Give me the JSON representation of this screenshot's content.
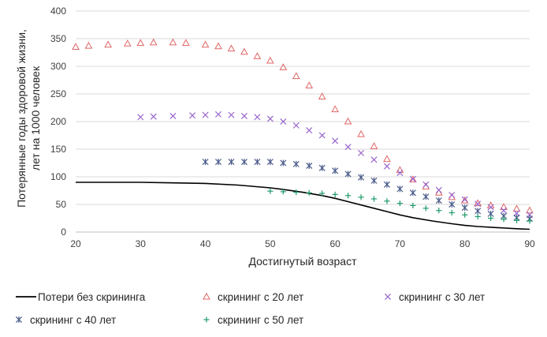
{
  "chart_data": {
    "type": "line",
    "xlabel": "Достигнутый возраст",
    "ylabel_lines": [
      "Потерянные годы здоровой жизни,",
      "лет на 1000 человек"
    ],
    "xlim": [
      20,
      90
    ],
    "ylim": [
      0,
      400
    ],
    "xticks": [
      "20",
      "30",
      "40",
      "50",
      "60",
      "70",
      "80",
      "90"
    ],
    "yticks": [
      "0",
      "50",
      "100",
      "150",
      "200",
      "250",
      "300",
      "350",
      "400"
    ],
    "grid": "horizontal",
    "legend_position": "bottom",
    "series": [
      {
        "name": "Потери без скрининга",
        "marker": "line",
        "color": "#000000",
        "points": [
          [
            20,
            90
          ],
          [
            25,
            90
          ],
          [
            30,
            90
          ],
          [
            35,
            89
          ],
          [
            40,
            88
          ],
          [
            45,
            85
          ],
          [
            50,
            80
          ],
          [
            52,
            77
          ],
          [
            55,
            72
          ],
          [
            58,
            66
          ],
          [
            60,
            61
          ],
          [
            62,
            55
          ],
          [
            65,
            46
          ],
          [
            68,
            37
          ],
          [
            70,
            31
          ],
          [
            72,
            26
          ],
          [
            75,
            20
          ],
          [
            78,
            15
          ],
          [
            80,
            12
          ],
          [
            82,
            10
          ],
          [
            85,
            8
          ],
          [
            88,
            6
          ],
          [
            90,
            5
          ]
        ]
      },
      {
        "name": "скрининг с 20 лет",
        "marker": "triangle",
        "color": "#e06666",
        "points": [
          [
            20,
            335
          ],
          [
            22,
            337
          ],
          [
            25,
            339
          ],
          [
            28,
            341
          ],
          [
            30,
            342
          ],
          [
            32,
            343
          ],
          [
            35,
            343
          ],
          [
            37,
            342
          ],
          [
            40,
            339
          ],
          [
            42,
            336
          ],
          [
            44,
            332
          ],
          [
            46,
            326
          ],
          [
            48,
            318
          ],
          [
            50,
            310
          ],
          [
            52,
            298
          ],
          [
            54,
            282
          ],
          [
            56,
            265
          ],
          [
            58,
            245
          ],
          [
            60,
            222
          ],
          [
            62,
            200
          ],
          [
            64,
            177
          ],
          [
            66,
            155
          ],
          [
            68,
            132
          ],
          [
            70,
            112
          ],
          [
            72,
            95
          ],
          [
            74,
            82
          ],
          [
            76,
            71
          ],
          [
            78,
            63
          ],
          [
            80,
            57
          ],
          [
            82,
            52
          ],
          [
            84,
            48
          ],
          [
            86,
            45
          ],
          [
            88,
            42
          ],
          [
            90,
            39
          ]
        ]
      },
      {
        "name": "скрининг с 30 лет",
        "marker": "x",
        "color": "#9966cc",
        "points": [
          [
            30,
            208
          ],
          [
            32,
            209
          ],
          [
            35,
            210
          ],
          [
            38,
            211
          ],
          [
            40,
            212
          ],
          [
            42,
            213
          ],
          [
            44,
            212
          ],
          [
            46,
            210
          ],
          [
            48,
            208
          ],
          [
            50,
            205
          ],
          [
            52,
            200
          ],
          [
            54,
            193
          ],
          [
            56,
            184
          ],
          [
            58,
            175
          ],
          [
            60,
            165
          ],
          [
            62,
            154
          ],
          [
            64,
            143
          ],
          [
            66,
            131
          ],
          [
            68,
            119
          ],
          [
            70,
            107
          ],
          [
            72,
            96
          ],
          [
            74,
            86
          ],
          [
            76,
            76
          ],
          [
            78,
            67
          ],
          [
            80,
            59
          ],
          [
            82,
            51
          ],
          [
            84,
            45
          ],
          [
            86,
            39
          ],
          [
            88,
            34
          ],
          [
            90,
            31
          ]
        ]
      },
      {
        "name": "скрининг с 40 лет",
        "marker": "asterisk",
        "color": "#4a5a8a",
        "points": [
          [
            40,
            127
          ],
          [
            42,
            127
          ],
          [
            44,
            127
          ],
          [
            46,
            127
          ],
          [
            48,
            127
          ],
          [
            50,
            127
          ],
          [
            52,
            125
          ],
          [
            54,
            123
          ],
          [
            56,
            120
          ],
          [
            58,
            116
          ],
          [
            60,
            111
          ],
          [
            62,
            105
          ],
          [
            64,
            99
          ],
          [
            66,
            93
          ],
          [
            68,
            86
          ],
          [
            70,
            78
          ],
          [
            72,
            71
          ],
          [
            74,
            64
          ],
          [
            76,
            57
          ],
          [
            78,
            50
          ],
          [
            80,
            44
          ],
          [
            82,
            38
          ],
          [
            84,
            33
          ],
          [
            86,
            29
          ],
          [
            88,
            26
          ],
          [
            90,
            24
          ]
        ]
      },
      {
        "name": "скрининг с 50 лет",
        "marker": "plus",
        "color": "#1f9b6a",
        "points": [
          [
            50,
            74
          ],
          [
            52,
            73
          ],
          [
            54,
            72
          ],
          [
            56,
            71
          ],
          [
            58,
            70
          ],
          [
            60,
            68
          ],
          [
            62,
            66
          ],
          [
            64,
            63
          ],
          [
            66,
            60
          ],
          [
            68,
            56
          ],
          [
            70,
            52
          ],
          [
            72,
            48
          ],
          [
            74,
            43
          ],
          [
            76,
            39
          ],
          [
            78,
            35
          ],
          [
            80,
            31
          ],
          [
            82,
            28
          ],
          [
            84,
            25
          ],
          [
            86,
            23
          ],
          [
            88,
            21
          ],
          [
            90,
            20
          ]
        ]
      }
    ]
  }
}
